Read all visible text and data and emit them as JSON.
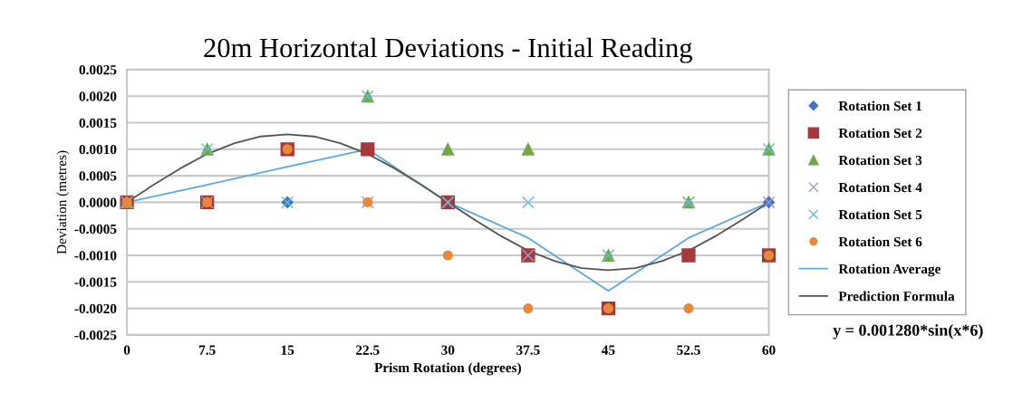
{
  "chart_data": {
    "type": "scatter",
    "title": "20m Horizontal Deviations - Initial Reading",
    "xlabel": "Prism Rotation (degrees)",
    "ylabel": "Deviation (metres)",
    "x": [
      0,
      7.5,
      15,
      22.5,
      30,
      37.5,
      45,
      52.5,
      60
    ],
    "xlim": [
      0,
      60
    ],
    "xticks": [
      0,
      7.5,
      15,
      22.5,
      30,
      37.5,
      45,
      52.5,
      60
    ],
    "ylim": [
      -0.0025,
      0.0025
    ],
    "yticks": [
      {
        "value": -0.0025,
        "label": "-0.0025"
      },
      {
        "value": -0.002,
        "label": "-0.0020"
      },
      {
        "value": -0.0015,
        "label": "-0.0015"
      },
      {
        "value": -0.001,
        "label": "-0.0010"
      },
      {
        "value": -0.0005,
        "label": "-0.0005"
      },
      {
        "value": 0,
        "label": "0.0000"
      },
      {
        "value": 0.0005,
        "label": "0.0005"
      },
      {
        "value": 0.001,
        "label": "0.0010"
      },
      {
        "value": 0.0015,
        "label": "0.0015"
      },
      {
        "value": 0.002,
        "label": "0.0020"
      },
      {
        "value": 0.0025,
        "label": "0.0025"
      }
    ],
    "grid": "y",
    "legend": "right",
    "series": [
      {
        "name": "Rotation Set 1",
        "color": "#4472c4",
        "marker": "diamond",
        "values": [
          null,
          null,
          0,
          null,
          null,
          null,
          null,
          null,
          0
        ]
      },
      {
        "name": "Rotation Set 2",
        "color": "#a5393b",
        "marker": "square",
        "values": [
          0,
          0,
          0.001,
          0.001,
          0,
          -0.001,
          -0.002,
          -0.001,
          -0.001
        ]
      },
      {
        "name": "Rotation Set 3",
        "color": "#70a845",
        "marker": "triangle",
        "values": [
          0,
          0.001,
          null,
          0.002,
          0.001,
          0.001,
          -0.001,
          0,
          0.001
        ]
      },
      {
        "name": "Rotation Set 4",
        "color": "#a09cd0",
        "marker": "cross",
        "values": [
          0,
          0,
          null,
          0,
          0,
          -0.001,
          null,
          0,
          0
        ]
      },
      {
        "name": "Rotation Set 5",
        "color": "#5fc0d8",
        "marker": "cross",
        "values": [
          0,
          0.001,
          0,
          0.002,
          0,
          0,
          -0.001,
          0,
          0.001
        ]
      },
      {
        "name": "Rotation Set 6",
        "color": "#e8883a",
        "marker": "circle",
        "values": [
          0,
          0,
          0.001,
          0,
          -0.001,
          -0.002,
          -0.002,
          -0.002,
          -0.001
        ]
      },
      {
        "name": "Rotation Average",
        "type": "line",
        "color": "#5aa9e0",
        "marker": "none",
        "values": [
          0,
          0.00033,
          0.00067,
          0.001,
          0,
          -0.00067,
          -0.00167,
          -0.00067,
          0
        ]
      },
      {
        "name": "Prediction Formula",
        "type": "line",
        "color": "#555555",
        "marker": "none",
        "x": [
          0,
          2.5,
          5,
          7.5,
          10,
          12.5,
          15,
          17.5,
          20,
          22.5,
          25,
          27.5,
          30,
          32.5,
          35,
          37.5,
          40,
          42.5,
          45,
          47.5,
          50,
          52.5,
          55,
          57.5,
          60
        ],
        "values": [
          0,
          0.00033,
          0.00064,
          0.00091,
          0.00111,
          0.00124,
          0.00128,
          0.00124,
          0.00111,
          0.00091,
          0.00064,
          0.00033,
          0,
          -0.00033,
          -0.00064,
          -0.00091,
          -0.00111,
          -0.00124,
          -0.00128,
          -0.00124,
          -0.00111,
          -0.00091,
          -0.00064,
          -0.00033,
          0
        ]
      }
    ],
    "annotations": [
      "y = 0.001280*sin(x*6)"
    ]
  }
}
